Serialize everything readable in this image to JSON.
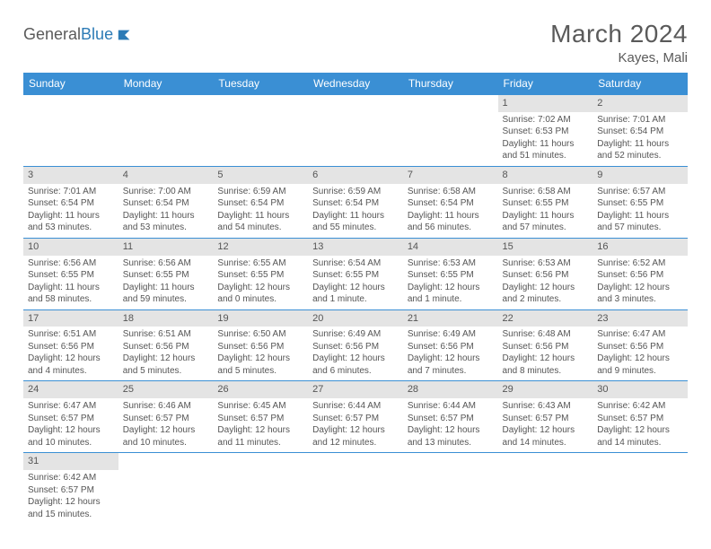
{
  "logo": {
    "word1": "General",
    "word2": "Blue"
  },
  "title": "March 2024",
  "location": "Kayes, Mali",
  "colors": {
    "header_bg": "#3a8fd4",
    "header_text": "#ffffff",
    "daynum_bg": "#e4e4e4",
    "text": "#555555",
    "row_border": "#3a8fd4"
  },
  "dow": [
    "Sunday",
    "Monday",
    "Tuesday",
    "Wednesday",
    "Thursday",
    "Friday",
    "Saturday"
  ],
  "weeks": [
    [
      null,
      null,
      null,
      null,
      null,
      {
        "n": "1",
        "sr": "7:02 AM",
        "ss": "6:53 PM",
        "dl": "11 hours and 51 minutes."
      },
      {
        "n": "2",
        "sr": "7:01 AM",
        "ss": "6:54 PM",
        "dl": "11 hours and 52 minutes."
      }
    ],
    [
      {
        "n": "3",
        "sr": "7:01 AM",
        "ss": "6:54 PM",
        "dl": "11 hours and 53 minutes."
      },
      {
        "n": "4",
        "sr": "7:00 AM",
        "ss": "6:54 PM",
        "dl": "11 hours and 53 minutes."
      },
      {
        "n": "5",
        "sr": "6:59 AM",
        "ss": "6:54 PM",
        "dl": "11 hours and 54 minutes."
      },
      {
        "n": "6",
        "sr": "6:59 AM",
        "ss": "6:54 PM",
        "dl": "11 hours and 55 minutes."
      },
      {
        "n": "7",
        "sr": "6:58 AM",
        "ss": "6:54 PM",
        "dl": "11 hours and 56 minutes."
      },
      {
        "n": "8",
        "sr": "6:58 AM",
        "ss": "6:55 PM",
        "dl": "11 hours and 57 minutes."
      },
      {
        "n": "9",
        "sr": "6:57 AM",
        "ss": "6:55 PM",
        "dl": "11 hours and 57 minutes."
      }
    ],
    [
      {
        "n": "10",
        "sr": "6:56 AM",
        "ss": "6:55 PM",
        "dl": "11 hours and 58 minutes."
      },
      {
        "n": "11",
        "sr": "6:56 AM",
        "ss": "6:55 PM",
        "dl": "11 hours and 59 minutes."
      },
      {
        "n": "12",
        "sr": "6:55 AM",
        "ss": "6:55 PM",
        "dl": "12 hours and 0 minutes."
      },
      {
        "n": "13",
        "sr": "6:54 AM",
        "ss": "6:55 PM",
        "dl": "12 hours and 1 minute."
      },
      {
        "n": "14",
        "sr": "6:53 AM",
        "ss": "6:55 PM",
        "dl": "12 hours and 1 minute."
      },
      {
        "n": "15",
        "sr": "6:53 AM",
        "ss": "6:56 PM",
        "dl": "12 hours and 2 minutes."
      },
      {
        "n": "16",
        "sr": "6:52 AM",
        "ss": "6:56 PM",
        "dl": "12 hours and 3 minutes."
      }
    ],
    [
      {
        "n": "17",
        "sr": "6:51 AM",
        "ss": "6:56 PM",
        "dl": "12 hours and 4 minutes."
      },
      {
        "n": "18",
        "sr": "6:51 AM",
        "ss": "6:56 PM",
        "dl": "12 hours and 5 minutes."
      },
      {
        "n": "19",
        "sr": "6:50 AM",
        "ss": "6:56 PM",
        "dl": "12 hours and 5 minutes."
      },
      {
        "n": "20",
        "sr": "6:49 AM",
        "ss": "6:56 PM",
        "dl": "12 hours and 6 minutes."
      },
      {
        "n": "21",
        "sr": "6:49 AM",
        "ss": "6:56 PM",
        "dl": "12 hours and 7 minutes."
      },
      {
        "n": "22",
        "sr": "6:48 AM",
        "ss": "6:56 PM",
        "dl": "12 hours and 8 minutes."
      },
      {
        "n": "23",
        "sr": "6:47 AM",
        "ss": "6:56 PM",
        "dl": "12 hours and 9 minutes."
      }
    ],
    [
      {
        "n": "24",
        "sr": "6:47 AM",
        "ss": "6:57 PM",
        "dl": "12 hours and 10 minutes."
      },
      {
        "n": "25",
        "sr": "6:46 AM",
        "ss": "6:57 PM",
        "dl": "12 hours and 10 minutes."
      },
      {
        "n": "26",
        "sr": "6:45 AM",
        "ss": "6:57 PM",
        "dl": "12 hours and 11 minutes."
      },
      {
        "n": "27",
        "sr": "6:44 AM",
        "ss": "6:57 PM",
        "dl": "12 hours and 12 minutes."
      },
      {
        "n": "28",
        "sr": "6:44 AM",
        "ss": "6:57 PM",
        "dl": "12 hours and 13 minutes."
      },
      {
        "n": "29",
        "sr": "6:43 AM",
        "ss": "6:57 PM",
        "dl": "12 hours and 14 minutes."
      },
      {
        "n": "30",
        "sr": "6:42 AM",
        "ss": "6:57 PM",
        "dl": "12 hours and 14 minutes."
      }
    ],
    [
      {
        "n": "31",
        "sr": "6:42 AM",
        "ss": "6:57 PM",
        "dl": "12 hours and 15 minutes."
      },
      null,
      null,
      null,
      null,
      null,
      null
    ]
  ],
  "labels": {
    "sunrise": "Sunrise:",
    "sunset": "Sunset:",
    "daylight": "Daylight:"
  }
}
